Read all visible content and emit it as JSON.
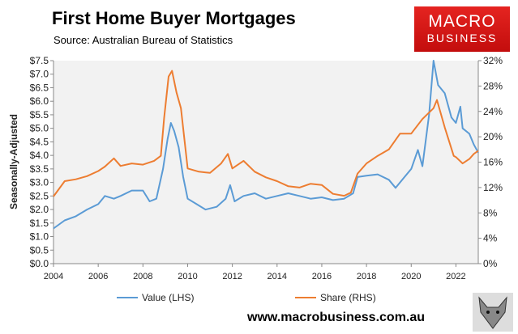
{
  "title": "First Home Buyer Mortgages",
  "subtitle": "Source: Australian Bureau of Statistics",
  "logo": {
    "line1": "MACRO",
    "line2": "BUSINESS"
  },
  "footer_url": "www.macrobusiness.com.au",
  "chart_data": {
    "type": "line",
    "title": "First Home Buyer Mortgages",
    "ylabel": "Seasonally-Adjusted",
    "xlim": [
      2004,
      2023
    ],
    "ylim": [
      0,
      7.5
    ],
    "y2lim": [
      0,
      32
    ],
    "xticks": [
      "2004",
      "2006",
      "2008",
      "2010",
      "2012",
      "2014",
      "2016",
      "2018",
      "2020",
      "2022"
    ],
    "yticks": [
      "$0.0",
      "$0.5",
      "$1.0",
      "$1.5",
      "$2.0",
      "$2.5",
      "$3.0",
      "$3.5",
      "$4.0",
      "$4.5",
      "$5.0",
      "$5.5",
      "$6.0",
      "$6.5",
      "$7.0",
      "$7.5"
    ],
    "y2ticks": [
      "0%",
      "4%",
      "8%",
      "12%",
      "16%",
      "20%",
      "24%",
      "28%",
      "32%"
    ],
    "grid": false,
    "legend": "bottom",
    "series": [
      {
        "name": "Value (LHS)",
        "axis": "left",
        "color": "#5b9bd5",
        "x": [
          2004,
          2004.5,
          2005,
          2005.5,
          2006,
          2006.3,
          2006.7,
          2007,
          2007.5,
          2008,
          2008.3,
          2008.6,
          2008.9,
          2009.1,
          2009.25,
          2009.4,
          2009.6,
          2009.8,
          2010,
          2010.4,
          2010.8,
          2011.3,
          2011.7,
          2011.9,
          2012.1,
          2012.5,
          2013,
          2013.5,
          2014,
          2014.5,
          2015,
          2015.5,
          2016,
          2016.5,
          2017,
          2017.4,
          2017.6,
          2018,
          2018.5,
          2019,
          2019.3,
          2019.7,
          2020,
          2020.3,
          2020.5,
          2020.8,
          2021,
          2021.2,
          2021.5,
          2021.8,
          2022,
          2022.2,
          2022.3,
          2022.6,
          2022.8,
          2023
        ],
        "values": [
          1.3,
          1.6,
          1.75,
          2.0,
          2.2,
          2.5,
          2.4,
          2.5,
          2.7,
          2.7,
          2.3,
          2.4,
          3.5,
          4.6,
          5.2,
          4.9,
          4.3,
          3.2,
          2.4,
          2.2,
          2.0,
          2.1,
          2.4,
          2.9,
          2.3,
          2.5,
          2.6,
          2.4,
          2.5,
          2.6,
          2.5,
          2.4,
          2.45,
          2.35,
          2.4,
          2.6,
          3.2,
          3.25,
          3.3,
          3.1,
          2.8,
          3.2,
          3.5,
          4.2,
          3.6,
          5.5,
          7.5,
          6.6,
          6.3,
          5.4,
          5.2,
          5.8,
          5.0,
          4.8,
          4.4,
          4.1
        ]
      },
      {
        "name": "Share (RHS)",
        "axis": "right",
        "color": "#ed7d31",
        "x": [
          2004,
          2004.5,
          2005,
          2005.5,
          2006,
          2006.3,
          2006.7,
          2007,
          2007.5,
          2008,
          2008.5,
          2008.8,
          2008.95,
          2009.15,
          2009.3,
          2009.5,
          2009.7,
          2010,
          2010.5,
          2011,
          2011.5,
          2011.8,
          2012,
          2012.5,
          2013,
          2013.5,
          2014,
          2014.5,
          2015,
          2015.5,
          2016,
          2016.5,
          2017,
          2017.3,
          2017.6,
          2018,
          2018.5,
          2019,
          2019.5,
          2020,
          2020.5,
          2021,
          2021.15,
          2021.5,
          2021.9,
          2022,
          2022.3,
          2022.6,
          2022.8,
          2023
        ],
        "values": [
          10.6,
          13.0,
          13.3,
          13.8,
          14.6,
          15.3,
          16.6,
          15.4,
          15.8,
          15.6,
          16.2,
          17.0,
          23,
          29.5,
          30.4,
          27,
          24.5,
          15.0,
          14.5,
          14.3,
          15.8,
          17.3,
          15.0,
          16.2,
          14.5,
          13.6,
          13.0,
          12.2,
          12.0,
          12.6,
          12.4,
          11.0,
          10.7,
          11.2,
          14.2,
          15.8,
          17.0,
          18.0,
          20.5,
          20.5,
          22.8,
          24.5,
          25.8,
          21.5,
          17.0,
          16.8,
          15.8,
          16.5,
          17.3,
          17.8
        ]
      }
    ]
  }
}
